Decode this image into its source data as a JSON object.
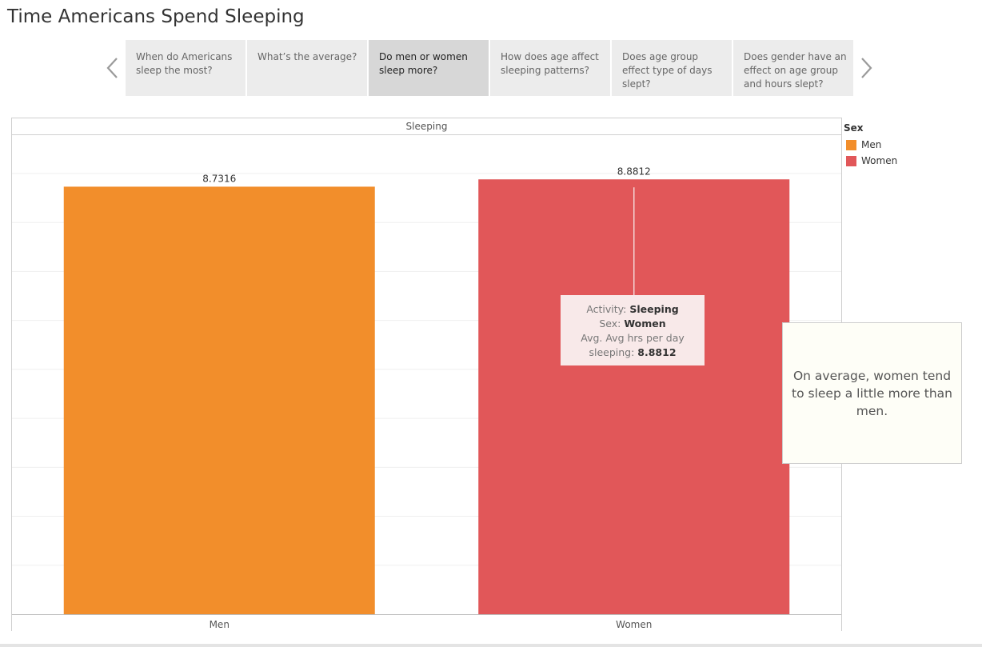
{
  "page_title": "Time Americans Spend Sleeping",
  "story_points": [
    {
      "label": "When do Americans sleep the most?",
      "active": false
    },
    {
      "label": "What’s the average?",
      "active": false
    },
    {
      "label": "Do men or women sleep more?",
      "active": true
    },
    {
      "label": "How does age affect sleeping patterns?",
      "active": false
    },
    {
      "label": "Does age group effect type of days slept?",
      "active": false
    },
    {
      "label": "Does gender have an effect on age group and hours slept?",
      "active": false
    }
  ],
  "nav_icons": {
    "prev": "chevron-left-icon",
    "next": "chevron-right-icon"
  },
  "chart_data": {
    "type": "bar",
    "title": "",
    "header": "Sleeping",
    "categories": [
      "Men",
      "Women"
    ],
    "values": [
      8.7316,
      8.8812
    ],
    "value_labels": [
      "8.7316",
      "8.8812"
    ],
    "colors": [
      "#f28e2b",
      "#e15759"
    ],
    "ylim": [
      0,
      9.8
    ],
    "grid": true,
    "legend": {
      "title": "Sex",
      "position": "right",
      "items": [
        {
          "label": "Men",
          "color": "#f28e2b"
        },
        {
          "label": "Women",
          "color": "#e15759"
        }
      ]
    }
  },
  "tooltip": {
    "activity_label": "Activity:",
    "activity_value": "Sleeping",
    "sex_label": "Sex:",
    "sex_value": "Women",
    "measure_label_line1": "Avg. Avg hrs per day",
    "measure_label_line2": "sleeping:",
    "measure_value": "8.8812"
  },
  "annotation": {
    "text": "On average, women tend to sleep a little more than men."
  }
}
